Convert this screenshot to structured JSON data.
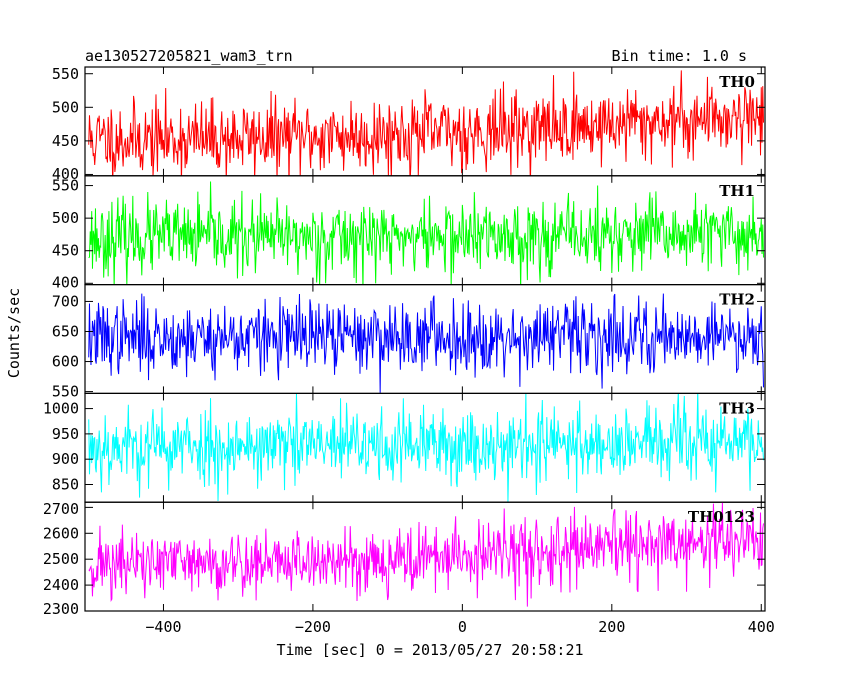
{
  "chart_data": {
    "type": "line",
    "title_left": "ae130527205821_wam3_trn",
    "title_right": "Bin time: 1.0 s",
    "xlabel": "Time [sec] 0 = 2013/05/27 20:58:21",
    "ylabel": "Counts/sec",
    "xlim": [
      -505,
      405
    ],
    "x_ticks": [
      -400,
      -200,
      0,
      200,
      400
    ],
    "x_tick_labels": [
      "−400",
      "−200",
      "0",
      "200",
      "400"
    ],
    "panels": [
      {
        "name": "TH0",
        "color": "#ff0000",
        "ylim": [
          398,
          560
        ],
        "y_ticks": [
          400,
          450,
          500,
          550
        ],
        "baseline_start": 452,
        "baseline_end": 490,
        "noise": 28,
        "seed": 11
      },
      {
        "name": "TH1",
        "color": "#00ff00",
        "ylim": [
          398,
          565
        ],
        "y_ticks": [
          400,
          450,
          500,
          550
        ],
        "baseline_start": 470,
        "baseline_end": 475,
        "noise": 28,
        "seed": 23
      },
      {
        "name": "TH2",
        "color": "#0000ff",
        "ylim": [
          547,
          728
        ],
        "y_ticks": [
          550,
          600,
          650,
          700
        ],
        "baseline_start": 640,
        "baseline_end": 645,
        "noise": 30,
        "seed": 37
      },
      {
        "name": "TH3",
        "color": "#00ffff",
        "ylim": [
          815,
          1030
        ],
        "y_ticks": [
          850,
          900,
          950,
          1000
        ],
        "baseline_start": 925,
        "baseline_end": 935,
        "noise": 38,
        "seed": 53
      },
      {
        "name": "TH0123",
        "color": "#ff00ff",
        "ylim": [
          2300,
          2720
        ],
        "y_ticks": [
          2300,
          2400,
          2500,
          2600,
          2700
        ],
        "baseline_start": 2480,
        "baseline_end": 2580,
        "noise": 65,
        "seed": 71
      }
    ]
  }
}
